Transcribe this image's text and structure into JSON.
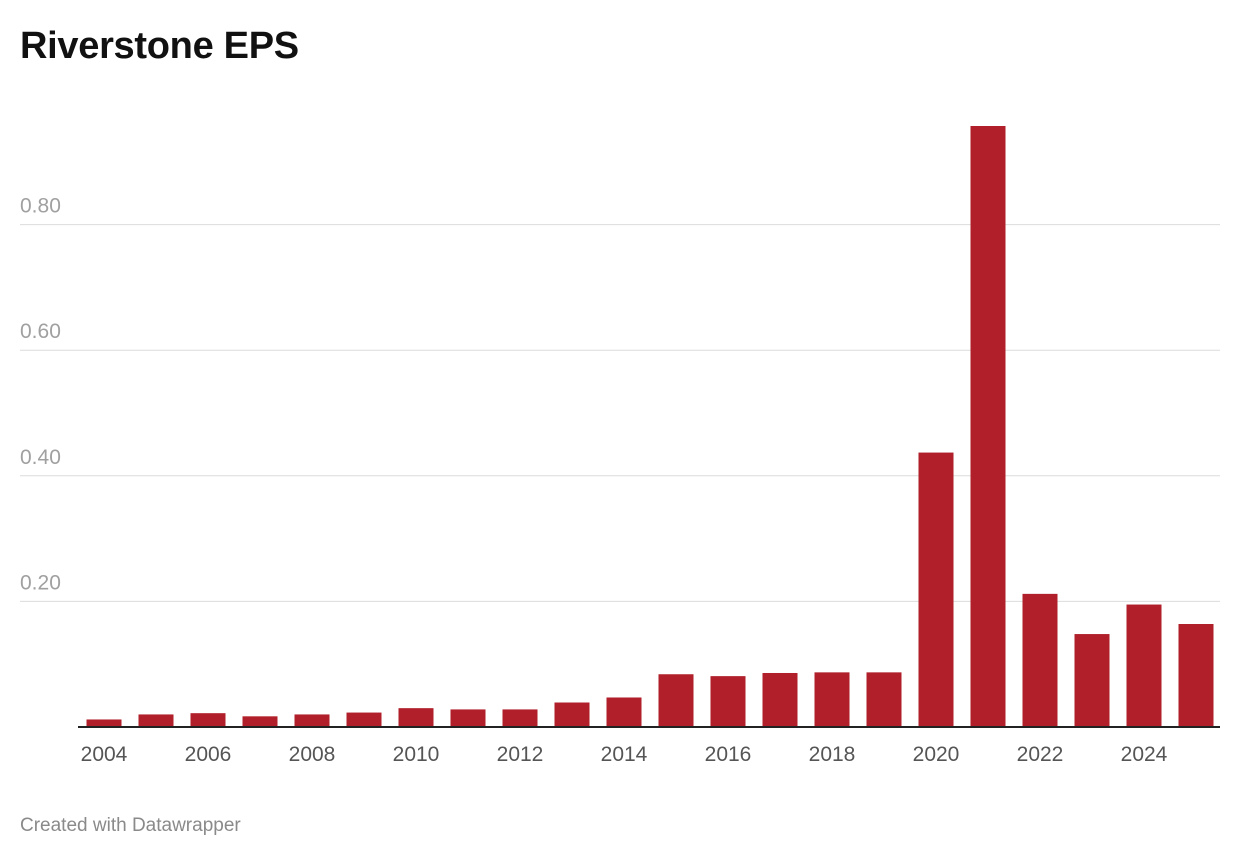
{
  "chart_data": {
    "type": "bar",
    "title": "Riverstone EPS",
    "xlabel": "",
    "ylabel": "",
    "categories": [
      "2004",
      "2005",
      "2006",
      "2007",
      "2008",
      "2009",
      "2010",
      "2011",
      "2012",
      "2013",
      "2014",
      "2015",
      "2016",
      "2017",
      "2018",
      "2019",
      "2020",
      "2021",
      "2022",
      "2023",
      "2024",
      "2025"
    ],
    "values": [
      0.012,
      0.02,
      0.022,
      0.017,
      0.02,
      0.023,
      0.03,
      0.028,
      0.028,
      0.039,
      0.047,
      0.084,
      0.081,
      0.086,
      0.087,
      0.087,
      0.437,
      0.957,
      0.212,
      0.148,
      0.195,
      0.164
    ],
    "x_tick_labels": [
      "2004",
      "2006",
      "2008",
      "2010",
      "2012",
      "2014",
      "2016",
      "2018",
      "2020",
      "2022",
      "2024"
    ],
    "y_ticks": [
      0.2,
      0.4,
      0.6,
      0.8
    ],
    "y_tick_labels": [
      "0.20",
      "0.40",
      "0.60",
      "0.80"
    ],
    "ylim": [
      0,
      0.96
    ],
    "grid": true,
    "bar_color": "#b01f2a"
  },
  "footer": {
    "credit": "Created with Datawrapper"
  }
}
